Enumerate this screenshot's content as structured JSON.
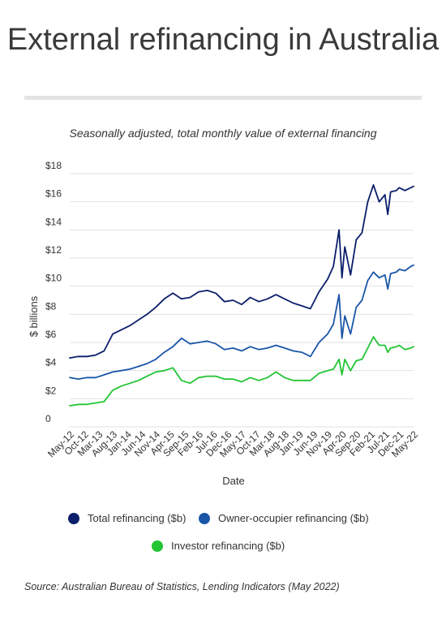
{
  "page": {
    "title": "External refinancing in Australia",
    "source": "Source: Australian Bureau of Statistics, Lending Indicators (May 2022)"
  },
  "chart_data": {
    "type": "line",
    "title": "External refinancing in Australia",
    "subtitle": "Seasonally adjusted, total monthly value of external financing",
    "xlabel": "Date",
    "ylabel": "$ billions",
    "ylim": [
      0,
      18
    ],
    "yticks": [
      0,
      2,
      4,
      6,
      8,
      10,
      12,
      14,
      16,
      18
    ],
    "ytick_labels": [
      "0",
      "$2",
      "$4",
      "$6",
      "$8",
      "$10",
      "$12",
      "$14",
      "$16",
      "$18"
    ],
    "xtick_labels": [
      "May-12",
      "Oct-12",
      "Mar-13",
      "Aug-13",
      "Jan-14",
      "Jun-14",
      "Nov-14",
      "Apr-15",
      "Sep-15",
      "Feb-16",
      "Jul-16",
      "Dec-16",
      "May-17",
      "Oct-17",
      "Mar-18",
      "Aug-18",
      "Jan-19",
      "Jun-19",
      "Nov-19",
      "Apr-20",
      "Sep-20",
      "Feb-21",
      "Jul-21",
      "Dec-21",
      "May-22"
    ],
    "grid": true,
    "legend_position": "bottom",
    "x": [
      "May-12",
      "Aug-12",
      "Nov-12",
      "Feb-13",
      "May-13",
      "Aug-13",
      "Nov-13",
      "Feb-14",
      "May-14",
      "Aug-14",
      "Nov-14",
      "Feb-15",
      "May-15",
      "Aug-15",
      "Nov-15",
      "Feb-16",
      "May-16",
      "Aug-16",
      "Nov-16",
      "Feb-17",
      "May-17",
      "Aug-17",
      "Nov-17",
      "Feb-18",
      "May-18",
      "Aug-18",
      "Nov-18",
      "Feb-19",
      "May-19",
      "Aug-19",
      "Nov-19",
      "Jan-20",
      "Mar-20",
      "Apr-20",
      "May-20",
      "Jul-20",
      "Sep-20",
      "Nov-20",
      "Jan-21",
      "Mar-21",
      "May-21",
      "Jul-21",
      "Aug-21",
      "Sep-21",
      "Nov-21",
      "Dec-21",
      "Feb-22",
      "Apr-22",
      "May-22"
    ],
    "series": [
      {
        "name": "Total refinancing ($b)",
        "color": "#0b1e6b",
        "values": [
          4.9,
          5.0,
          5.0,
          5.1,
          5.4,
          6.6,
          6.9,
          7.2,
          7.6,
          8.0,
          8.5,
          9.1,
          9.5,
          9.1,
          9.2,
          9.6,
          9.7,
          9.5,
          8.9,
          9.0,
          8.7,
          9.2,
          8.9,
          9.1,
          9.4,
          9.1,
          8.8,
          8.6,
          8.4,
          9.6,
          10.5,
          11.4,
          14.0,
          10.6,
          12.8,
          10.8,
          13.3,
          13.8,
          16.0,
          17.2,
          16.0,
          16.5,
          15.1,
          16.7,
          16.8,
          17.0,
          16.8,
          17.0,
          17.1
        ]
      },
      {
        "name": "Owner-occupier refinancing ($b)",
        "color": "#1a56a8",
        "values": [
          3.5,
          3.4,
          3.5,
          3.5,
          3.7,
          3.9,
          4.0,
          4.1,
          4.3,
          4.5,
          4.8,
          5.3,
          5.7,
          6.3,
          5.9,
          6.0,
          6.1,
          5.9,
          5.5,
          5.6,
          5.4,
          5.7,
          5.5,
          5.6,
          5.8,
          5.6,
          5.4,
          5.3,
          5.0,
          6.0,
          6.6,
          7.3,
          9.4,
          6.3,
          7.9,
          6.6,
          8.5,
          9.0,
          10.4,
          11.0,
          10.6,
          10.8,
          9.8,
          10.9,
          11.0,
          11.2,
          11.1,
          11.4,
          11.5
        ]
      },
      {
        "name": "Investor refinancing ($b)",
        "color": "#22c534",
        "values": [
          1.5,
          1.6,
          1.6,
          1.7,
          1.8,
          2.6,
          2.9,
          3.1,
          3.3,
          3.6,
          3.9,
          4.0,
          4.2,
          3.3,
          3.1,
          3.5,
          3.6,
          3.6,
          3.4,
          3.4,
          3.2,
          3.5,
          3.3,
          3.5,
          3.9,
          3.5,
          3.3,
          3.3,
          3.3,
          3.8,
          4.0,
          4.1,
          4.8,
          3.7,
          4.8,
          4.0,
          4.7,
          4.8,
          5.6,
          6.4,
          5.8,
          5.8,
          5.3,
          5.6,
          5.7,
          5.8,
          5.5,
          5.6,
          5.7
        ]
      }
    ]
  }
}
